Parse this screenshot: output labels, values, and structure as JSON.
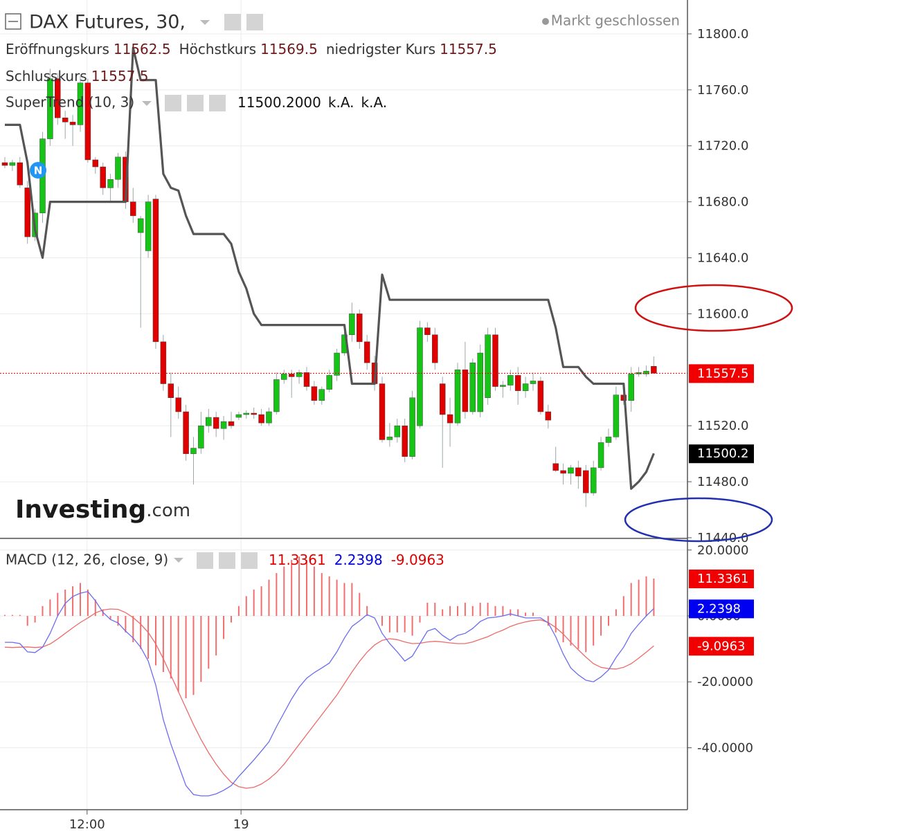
{
  "chart_data": [
    {
      "type": "candlestick",
      "title": "DAX Futures, 30,",
      "status": "Markt geschlossen",
      "ohlc_labels": [
        "Eröffnungskurs",
        "Höchstkurs",
        "niedrigster Kurs",
        "Schlusskurs"
      ],
      "up_color": "#16c416",
      "down_color": "#e00000",
      "candles": [
        [
          11708,
          11712,
          11704,
          11706
        ],
        [
          11706,
          11710,
          11702,
          11708
        ],
        [
          11708,
          11712,
          11690,
          11692
        ],
        [
          11690,
          11695,
          11650,
          11655
        ],
        [
          11655,
          11675,
          11652,
          11672
        ],
        [
          11672,
          11730,
          11665,
          11725
        ],
        [
          11725,
          11775,
          11720,
          11768
        ],
        [
          11768,
          11772,
          11735,
          11740
        ],
        [
          11740,
          11745,
          11725,
          11737
        ],
        [
          11737,
          11742,
          11720,
          11735
        ],
        [
          11735,
          11770,
          11730,
          11765
        ],
        [
          11765,
          11768,
          11708,
          11710
        ],
        [
          11710,
          11712,
          11700,
          11705
        ],
        [
          11705,
          11708,
          11685,
          11690
        ],
        [
          11690,
          11700,
          11680,
          11696
        ],
        [
          11696,
          11715,
          11690,
          11712
        ],
        [
          11712,
          11716,
          11675,
          11680
        ],
        [
          11680,
          11690,
          11665,
          11670
        ],
        [
          11658,
          11670,
          11590,
          11668
        ],
        [
          11645,
          11685,
          11640,
          11680
        ],
        [
          11682,
          11685,
          11575,
          11580
        ],
        [
          11580,
          11585,
          11545,
          11550
        ],
        [
          11550,
          11558,
          11512,
          11540
        ],
        [
          11540,
          11548,
          11525,
          11530
        ],
        [
          11530,
          11535,
          11495,
          11500
        ],
        [
          11500,
          11512,
          11478,
          11504
        ],
        [
          11504,
          11530,
          11500,
          11520
        ],
        [
          11520,
          11532,
          11515,
          11526
        ],
        [
          11526,
          11530,
          11512,
          11518
        ],
        [
          11518,
          11527,
          11510,
          11523
        ],
        [
          11523,
          11530,
          11518,
          11520
        ],
        [
          11526,
          11530,
          11524,
          11528
        ],
        [
          11528,
          11531,
          11525,
          11529
        ],
        [
          11529,
          11533,
          11525,
          11528
        ],
        [
          11528,
          11532,
          11520,
          11522
        ],
        [
          11522,
          11533,
          11520,
          11530
        ],
        [
          11530,
          11558,
          11528,
          11553
        ],
        [
          11553,
          11560,
          11550,
          11557
        ],
        [
          11557,
          11560,
          11540,
          11555
        ],
        [
          11555,
          11560,
          11550,
          11558
        ],
        [
          11558,
          11562,
          11545,
          11548
        ],
        [
          11548,
          11552,
          11535,
          11538
        ],
        [
          11538,
          11548,
          11535,
          11546
        ],
        [
          11546,
          11560,
          11544,
          11556
        ],
        [
          11556,
          11575,
          11552,
          11572
        ],
        [
          11572,
          11592,
          11570,
          11585
        ],
        [
          11585,
          11608,
          11580,
          11600
        ],
        [
          11600,
          11603,
          11575,
          11580
        ],
        [
          11580,
          11585,
          11560,
          11565
        ],
        [
          11565,
          11570,
          11545,
          11550
        ],
        [
          11550,
          11555,
          11508,
          11510
        ],
        [
          11510,
          11522,
          11505,
          11512
        ],
        [
          11512,
          11525,
          11508,
          11520
        ],
        [
          11520,
          11525,
          11494,
          11498
        ],
        [
          11498,
          11545,
          11496,
          11540
        ],
        [
          11520,
          11595,
          11518,
          11590
        ],
        [
          11590,
          11594,
          11580,
          11585
        ],
        [
          11585,
          11590,
          11560,
          11565
        ],
        [
          11550,
          11555,
          11490,
          11528
        ],
        [
          11528,
          11540,
          11505,
          11522
        ],
        [
          11522,
          11565,
          11520,
          11560
        ],
        [
          11560,
          11580,
          11525,
          11530
        ],
        [
          11530,
          11568,
          11528,
          11565
        ],
        [
          11530,
          11578,
          11526,
          11572
        ],
        [
          11540,
          11590,
          11535,
          11585
        ],
        [
          11585,
          11590,
          11545,
          11548
        ],
        [
          11548,
          11552,
          11540,
          11549
        ],
        [
          11549,
          11560,
          11545,
          11556
        ],
        [
          11556,
          11562,
          11535,
          11545
        ],
        [
          11545,
          11555,
          11540,
          11550
        ],
        [
          11550,
          11558,
          11545,
          11552
        ],
        [
          11552,
          11555,
          11528,
          11530
        ],
        [
          11530,
          11535,
          11518,
          11524
        ],
        [
          11493,
          11505,
          11487,
          11488
        ],
        [
          11488,
          11493,
          11478,
          11486
        ],
        [
          11486,
          11492,
          11478,
          11490
        ],
        [
          11490,
          11495,
          11475,
          11484
        ],
        [
          11488,
          11492,
          11462,
          11472
        ],
        [
          11472,
          11495,
          11470,
          11490
        ],
        [
          11490,
          11512,
          11488,
          11508
        ],
        [
          11508,
          11518,
          11505,
          11512
        ],
        [
          11512,
          11548,
          11510,
          11542
        ],
        [
          11542,
          11546,
          11535,
          11538
        ],
        [
          11538,
          11562,
          11530,
          11557
        ],
        [
          11557,
          11562,
          11555,
          11558
        ],
        [
          11557,
          11563,
          11555,
          11559
        ],
        [
          11562.5,
          11569.5,
          11557.5,
          11557.5
        ]
      ],
      "supertrend": {
        "name": "SuperTrend (10, 3)",
        "color": "#555555",
        "values": [
          11735,
          11735,
          11735,
          11708,
          11660,
          11640,
          11680,
          11680,
          11680,
          11680,
          11680,
          11680,
          11680,
          11680,
          11680,
          11680,
          11680,
          11790,
          11767,
          11767,
          11767,
          11700,
          11690,
          11688,
          11670,
          11657,
          11657,
          11657,
          11657,
          11657,
          11650,
          11630,
          11618,
          11600,
          11592,
          11592,
          11592,
          11592,
          11592,
          11592,
          11592,
          11592,
          11592,
          11592,
          11592,
          11592,
          11550,
          11550,
          11550,
          11550,
          11628,
          11610,
          11610,
          11610,
          11610,
          11610,
          11610,
          11610,
          11610,
          11610,
          11610,
          11610,
          11610,
          11610,
          11610,
          11610,
          11610,
          11610,
          11610,
          11610,
          11610,
          11610,
          11610,
          11590,
          11562,
          11562,
          11562,
          11555,
          11550,
          11550,
          11550,
          11550,
          11550,
          11475,
          11480,
          11487,
          11500.2
        ],
        "last_label": "11500.2000",
        "extras": [
          "k.A.",
          "k.A."
        ]
      },
      "watermark": {
        "main": "Investing",
        "suffix": ".com"
      },
      "event_marker": "N",
      "ylim": [
        11439.5,
        11824.2
      ],
      "yticks": [
        {
          "value": 11800,
          "label": "11800.0"
        },
        {
          "value": 11760,
          "label": "11760.0"
        },
        {
          "value": 11720,
          "label": "11720.0"
        },
        {
          "value": 11680,
          "label": "11680.0"
        },
        {
          "value": 11640,
          "label": "11640.0"
        },
        {
          "value": 11600,
          "label": "11600.0"
        },
        {
          "value": 11520,
          "label": "11520.0"
        },
        {
          "value": 11480,
          "label": "11480.0"
        },
        {
          "value": 11440,
          "label": "11440.0"
        }
      ],
      "grid": true
    },
    {
      "type": "macd",
      "title": "MACD (12, 26, close, 9)",
      "histogram": {
        "color": "#f26d6d",
        "values": [
          0.3,
          0.3,
          0.3,
          -3,
          -2,
          3,
          5,
          7,
          8,
          9,
          10,
          8,
          5,
          2,
          -1,
          -3,
          -5,
          -8,
          -10,
          -13,
          -15,
          -17,
          -19,
          -23,
          -25,
          -24,
          -20,
          -16,
          -12,
          -7,
          -2,
          3,
          6,
          8,
          9,
          11,
          13,
          15,
          17,
          18,
          17,
          15,
          13,
          12,
          11,
          10,
          10,
          7,
          3,
          0,
          -3,
          -5,
          -5,
          -5,
          -6,
          -2,
          4,
          4,
          2,
          3,
          3,
          4,
          3,
          4,
          4,
          3,
          3,
          2,
          2,
          1,
          1,
          0,
          -3,
          -5,
          -8,
          -9,
          -10,
          -11,
          -9,
          -6,
          -3,
          2,
          6,
          10,
          11,
          12,
          11.3361
        ]
      },
      "macd": {
        "color": "#6b6bf0",
        "values": [
          -8,
          -8,
          -8.4,
          -10.9,
          -11.1,
          -9.5,
          -5.3,
          0,
          3.8,
          5.9,
          6.9,
          7.4,
          4.6,
          1.1,
          -1.1,
          -2.1,
          -4.6,
          -6.7,
          -9.5,
          -13.7,
          -21,
          -31.5,
          -38.9,
          -45.2,
          -51.5,
          -54.2,
          -54.6,
          -54.6,
          -54,
          -52.9,
          -51.5,
          -48.7,
          -46.2,
          -43.7,
          -41,
          -38.2,
          -33.6,
          -29.4,
          -25.2,
          -21.6,
          -18.9,
          -17.2,
          -15.8,
          -14.3,
          -10.9,
          -6.7,
          -3.2,
          -1.5,
          0.4,
          -0.6,
          -5.3,
          -8.4,
          -10.9,
          -13.7,
          -12.2,
          -8.4,
          -4.6,
          -3.8,
          -5.9,
          -7.4,
          -5.9,
          -5.3,
          -3.8,
          -1.7,
          -0.6,
          -0.4,
          0,
          0.6,
          0,
          -0.6,
          -0.6,
          -0.6,
          -2.1,
          -6.3,
          -11.6,
          -15.8,
          -17.9,
          -19.5,
          -20,
          -18.5,
          -16.4,
          -12.6,
          -9.5,
          -5.3,
          -2.5,
          0,
          2.2398
        ]
      },
      "signal": {
        "color": "#ee6a6a",
        "values": [
          -9.5,
          -9.6,
          -9.5,
          -9.4,
          -9.6,
          -9.4,
          -8.5,
          -7,
          -5.3,
          -3.6,
          -2,
          -0.6,
          0.9,
          1.8,
          2.1,
          2,
          1,
          -0.5,
          -2.5,
          -5,
          -8.5,
          -13,
          -18,
          -23,
          -28,
          -33,
          -37.5,
          -41.5,
          -45,
          -48,
          -50.5,
          -51.8,
          -52.3,
          -52,
          -51,
          -49.5,
          -47.5,
          -45,
          -42,
          -39,
          -36,
          -33,
          -30,
          -27,
          -24,
          -20.5,
          -17,
          -13.8,
          -11,
          -8.8,
          -7.4,
          -6.9,
          -7.2,
          -7.9,
          -8.4,
          -8.3,
          -7.9,
          -7.7,
          -7.9,
          -8.2,
          -8.4,
          -8.4,
          -7.9,
          -7.1,
          -6.3,
          -5.2,
          -4.3,
          -3.2,
          -2.4,
          -1.8,
          -1.4,
          -1.2,
          -2,
          -3.5,
          -5.5,
          -8,
          -10.3,
          -12.5,
          -14.5,
          -15.6,
          -16,
          -16.1,
          -15.6,
          -14.5,
          -12.8,
          -11,
          -9.0963
        ]
      },
      "ylim": [
        -58.8,
        23.1
      ],
      "yticks": [
        {
          "value": 20,
          "label": "20.0000"
        },
        {
          "value": 0,
          "label": "0.0000"
        },
        {
          "value": -20,
          "label": "-20.0000"
        },
        {
          "value": -40,
          "label": "-40.0000"
        }
      ],
      "xlim": [
        -0.64,
        90.46
      ],
      "xticks": [
        {
          "value": 10.9,
          "label": "12:00"
        },
        {
          "value": 31.3,
          "label": "19"
        }
      ],
      "grid": true
    }
  ]
}
